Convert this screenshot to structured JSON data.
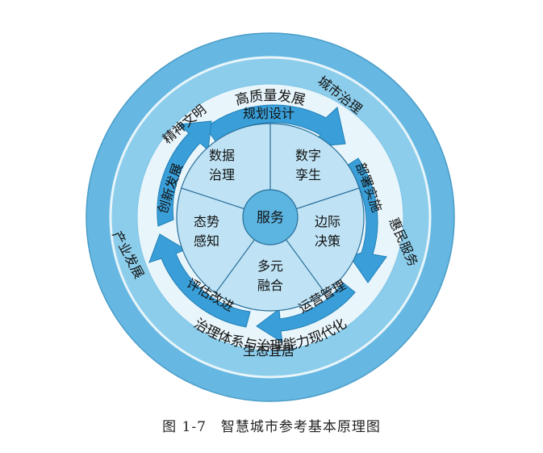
{
  "outer_ring": {
    "top": "高质量发展",
    "bottom": "治理体系与治理能力现代化"
  },
  "middle_ring": {
    "civilization": "精神文明",
    "city_governance": "城市治理",
    "industry": "产业发展",
    "benefit_service": "惠民服务",
    "ecology": "生态宜居"
  },
  "cycle": {
    "planning": "规划设计",
    "deployment": "部署实施",
    "operation": "运营管理",
    "evaluation": "评估改进",
    "innovation": "创新发展"
  },
  "core": {
    "center": "服务",
    "data_gov_1": "数据",
    "data_gov_2": "治理",
    "twin_1": "数字",
    "twin_2": "孪生",
    "edge_1": "边际",
    "edge_2": "决策",
    "fusion_1": "多元",
    "fusion_2": "融合",
    "sense_1": "态势",
    "sense_2": "感知"
  },
  "caption": {
    "number": "图 1-7",
    "title": "智慧城市参考基本原理图"
  },
  "colors": {
    "outer": "#66b8e2",
    "middle": "#8ccdeb",
    "gap": "#e8f5fb",
    "arrow": "#3a9fd8",
    "inner": "#bfe3f5",
    "center": "#5cb4e0",
    "line": "#2a6f9a"
  }
}
